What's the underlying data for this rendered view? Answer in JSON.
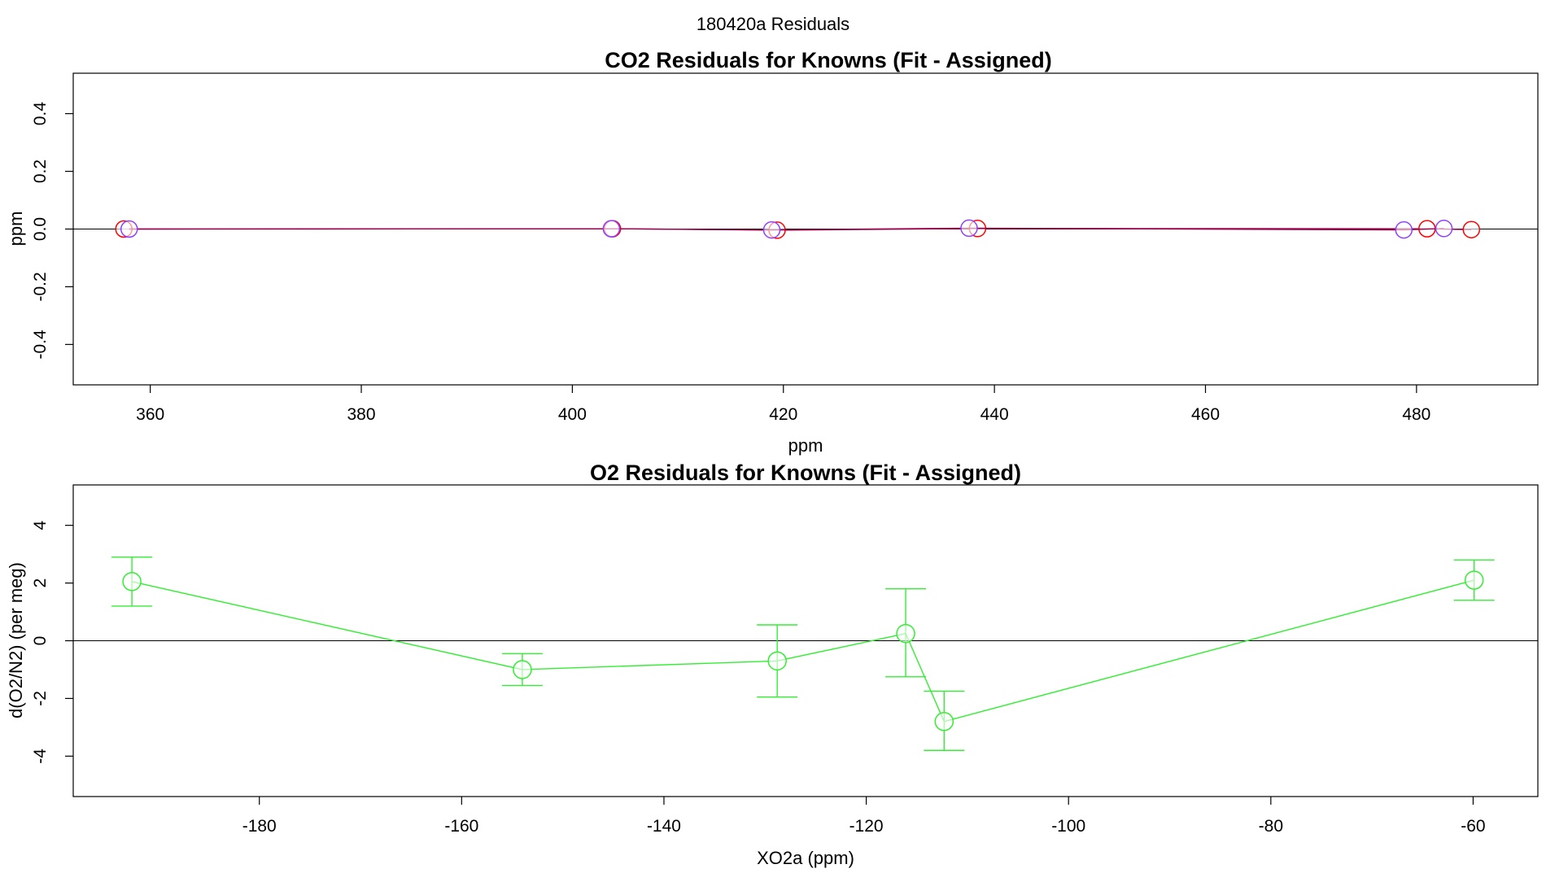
{
  "page_title": "180420a  Residuals",
  "colors": {
    "co2_red": "#ff0000",
    "co2_blue": "#8f3fff",
    "co2_line": "#9a004a",
    "o2_green": "#33ee33",
    "zero_line": "#000000"
  },
  "chart_data": [
    {
      "type": "scatter",
      "title": "CO2 Residuals for Knowns (Fit - Assigned)",
      "xlabel": "ppm",
      "ylabel": "ppm",
      "xlim": [
        352.7,
        491.5
      ],
      "ylim": [
        -0.54,
        0.54
      ],
      "x_ticks": [
        "360",
        "380",
        "400",
        "420",
        "440",
        "460",
        "480"
      ],
      "y_ticks": [
        "-0.4",
        "-0.2",
        "0.0",
        "0.2",
        "0.4"
      ],
      "zero_line": true,
      "series": [
        {
          "marker": "open-circle",
          "color": "co2_red",
          "connected": true,
          "x": [
            357.5,
            403.8,
            419.4,
            438.4,
            481.0,
            485.2
          ],
          "y": [
            0.0,
            0.001,
            -0.004,
            0.002,
            0.001,
            -0.002
          ]
        },
        {
          "marker": "open-circle",
          "color": "co2_blue",
          "connected": true,
          "x": [
            358.0,
            403.7,
            418.9,
            437.6,
            478.8,
            482.6
          ],
          "y": [
            0.0,
            0.001,
            -0.003,
            0.003,
            -0.003,
            0.002
          ]
        }
      ]
    },
    {
      "type": "scatter",
      "title": "O2 Residuals for Knowns (Fit - Assigned)",
      "xlabel": "XO2a (ppm)",
      "ylabel": "d(O2/N2) (per meg)",
      "xlim": [
        -198.4,
        -53.6
      ],
      "ylim": [
        -5.4,
        5.4
      ],
      "x_ticks": [
        "-180",
        "-160",
        "-140",
        "-120",
        "-100",
        "-80",
        "-60"
      ],
      "y_ticks": [
        "-4",
        "-2",
        "0",
        "2",
        "4"
      ],
      "zero_line": true,
      "series": [
        {
          "marker": "open-circle",
          "color": "o2_green",
          "connected": true,
          "error_bars": true,
          "x": [
            -192.6,
            -154.0,
            -128.8,
            -116.1,
            -112.3,
            -59.9
          ],
          "y": [
            2.05,
            -1.0,
            -0.7,
            0.25,
            -2.8,
            2.1
          ],
          "err_low": [
            1.2,
            -1.55,
            -1.95,
            -1.25,
            -3.8,
            1.4
          ],
          "err_high": [
            2.9,
            -0.45,
            0.55,
            1.8,
            -1.75,
            2.8
          ]
        }
      ]
    }
  ]
}
